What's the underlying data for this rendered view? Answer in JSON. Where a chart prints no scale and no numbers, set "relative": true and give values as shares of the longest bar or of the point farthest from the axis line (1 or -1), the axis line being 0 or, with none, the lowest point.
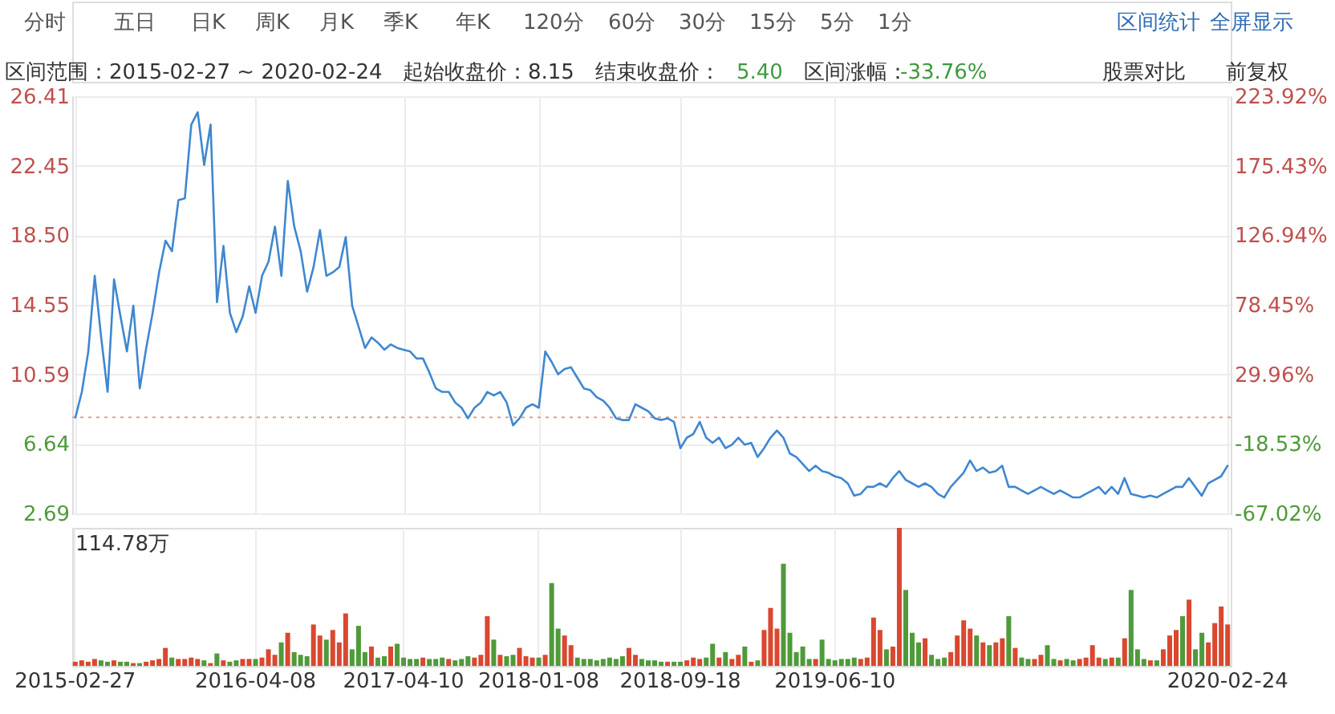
{
  "chart_data": [
    {
      "type": "line",
      "annotations": [
        "分时",
        "五日",
        "日K",
        "周K",
        "月K",
        "季K",
        "年K",
        "120分",
        "60分",
        "30分",
        "15分",
        "5分",
        "1分",
        "区间统计",
        "全屏显示",
        "区间范围：2015-02-27 ~ 2020-02-24",
        "起始收盘价：8.15",
        "结束收盘价：",
        "5.40",
        "区间涨幅：",
        "-33.76%",
        "股票对比",
        "前复权"
      ],
      "categories": [
        "2015-02-27",
        null,
        null,
        null,
        null,
        null,
        null,
        null,
        null,
        null,
        null,
        null,
        null,
        null,
        null,
        null,
        null,
        null,
        null,
        null,
        null,
        null,
        null,
        null,
        null,
        null,
        null,
        null,
        "2016-04-08",
        null,
        null,
        null,
        null,
        null,
        null,
        null,
        null,
        null,
        null,
        null,
        null,
        null,
        null,
        null,
        null,
        null,
        null,
        null,
        null,
        null,
        null,
        "2017-04-10",
        null,
        null,
        null,
        null,
        null,
        null,
        null,
        null,
        null,
        null,
        null,
        null,
        null,
        null,
        null,
        null,
        null,
        null,
        null,
        null,
        "2018-01-08",
        null,
        null,
        null,
        null,
        null,
        null,
        null,
        null,
        null,
        null,
        null,
        null,
        null,
        null,
        null,
        null,
        null,
        null,
        null,
        null,
        null,
        "2018-09-18",
        null,
        null,
        null,
        null,
        null,
        null,
        null,
        null,
        null,
        null,
        null,
        null,
        null,
        null,
        null,
        null,
        null,
        null,
        null,
        null,
        null,
        null,
        null,
        "2019-06-10",
        null,
        null,
        null,
        null,
        null,
        null,
        null,
        null,
        null,
        null,
        null,
        null,
        null,
        null,
        null,
        null,
        null,
        null,
        null,
        null,
        null,
        null,
        null,
        null,
        null,
        null,
        null,
        null,
        null,
        null,
        null,
        null,
        null,
        null,
        null,
        null,
        null,
        null,
        null,
        null,
        null,
        null,
        null,
        null,
        null,
        null,
        null,
        null,
        null,
        null,
        null,
        null,
        null,
        null,
        null,
        null,
        null,
        null,
        null,
        null,
        "2020-02-24"
      ],
      "series": [
        {
          "color": "#3f87d0",
          "values": [
            8.15,
            9.6,
            11.9,
            16.2,
            12.7,
            9.6,
            16.0,
            13.9,
            11.9,
            14.5,
            9.8,
            12.1,
            14.1,
            16.4,
            18.2,
            17.6,
            20.5,
            20.6,
            24.8,
            25.5,
            22.5,
            24.8,
            14.7,
            17.9,
            14.1,
            13.0,
            13.9,
            15.6,
            14.1,
            16.2,
            17.0,
            19.0,
            16.2,
            21.6,
            19.0,
            17.6,
            15.3,
            16.7,
            18.8,
            16.2,
            16.4,
            16.7,
            18.4,
            14.5,
            13.3,
            12.1,
            12.7,
            12.4,
            12.0,
            12.3,
            12.1,
            12.0,
            11.9,
            11.5,
            11.5,
            10.7,
            9.8,
            9.6,
            9.6,
            9.0,
            8.7,
            8.1,
            8.7,
            9.0,
            9.6,
            9.4,
            9.6,
            9.0,
            7.7,
            8.1,
            8.7,
            8.9,
            8.7,
            11.9,
            11.3,
            10.6,
            10.9,
            11.0,
            10.4,
            9.8,
            9.7,
            9.3,
            9.1,
            8.7,
            8.1,
            8.0,
            8.0,
            8.9,
            8.7,
            8.5,
            8.1,
            8.0,
            8.1,
            7.9,
            6.4,
            7.0,
            7.2,
            7.9,
            7.0,
            6.7,
            7.0,
            6.4,
            6.6,
            7.0,
            6.6,
            6.7,
            5.9,
            6.4,
            7.0,
            7.4,
            7.0,
            6.1,
            5.9,
            5.5,
            5.1,
            5.4,
            5.1,
            5.0,
            4.8,
            4.7,
            4.4,
            3.7,
            3.8,
            4.2,
            4.2,
            4.4,
            4.2,
            4.7,
            5.1,
            4.6,
            4.4,
            4.2,
            4.4,
            4.2,
            3.8,
            3.6,
            4.2,
            4.6,
            5.0,
            5.7,
            5.1,
            5.3,
            5.0,
            5.1,
            5.4,
            4.2,
            4.2,
            4.0,
            3.8,
            4.0,
            4.2,
            4.0,
            3.8,
            4.0,
            3.8,
            3.6,
            3.6,
            3.8,
            4.0,
            4.2,
            3.8,
            4.2,
            3.8,
            4.7,
            3.8,
            3.7,
            3.6,
            3.7,
            3.6,
            3.8,
            4.0,
            4.2,
            4.2,
            4.7,
            4.2,
            3.7,
            4.4,
            4.6,
            4.8,
            5.4
          ]
        }
      ],
      "ylim": [
        2.69,
        26.41
      ],
      "yticks": [
        2.69,
        6.64,
        10.59,
        14.55,
        {
          "value": 18.5,
          "label": "18.50"
        },
        22.45,
        26.41
      ],
      "y2lim": [
        -67.02,
        223.92
      ],
      "y2ticks": [
        {
          "value": -67.02,
          "label": "-67.02%"
        },
        {
          "value": -18.53,
          "label": "-18.53%"
        },
        {
          "value": 29.96,
          "label": "29.96%"
        },
        {
          "value": 78.45,
          "label": "78.45%"
        },
        {
          "value": 126.94,
          "label": "126.94%"
        },
        {
          "value": 175.43,
          "label": "175.43%"
        },
        {
          "value": 223.92,
          "label": "223.92%"
        }
      ],
      "ref_lines": [
        {
          "axis": "y",
          "value": 8.15,
          "color": "#d9a48a",
          "line_style": "dotted"
        }
      ],
      "grid": true,
      "tick_labels": "y",
      "marker": "none",
      "line_style": "solid"
    },
    {
      "type": "bar",
      "annotations": [
        "114.78万"
      ],
      "categories": [
        "2015-02-27",
        null,
        null,
        null,
        null,
        null,
        null,
        null,
        null,
        null,
        null,
        null,
        null,
        null,
        null,
        null,
        null,
        null,
        null,
        null,
        null,
        null,
        null,
        null,
        null,
        null,
        null,
        null,
        "2016-04-08",
        null,
        null,
        null,
        null,
        null,
        null,
        null,
        null,
        null,
        null,
        null,
        null,
        null,
        null,
        null,
        null,
        null,
        null,
        null,
        null,
        null,
        null,
        "2017-04-10",
        null,
        null,
        null,
        null,
        null,
        null,
        null,
        null,
        null,
        null,
        null,
        null,
        null,
        null,
        null,
        null,
        null,
        null,
        null,
        null,
        "2018-01-08",
        null,
        null,
        null,
        null,
        null,
        null,
        null,
        null,
        null,
        null,
        null,
        null,
        null,
        null,
        null,
        null,
        null,
        null,
        null,
        null,
        null,
        "2018-09-18",
        null,
        null,
        null,
        null,
        null,
        null,
        null,
        null,
        null,
        null,
        null,
        null,
        null,
        null,
        null,
        null,
        null,
        null,
        null,
        null,
        null,
        null,
        null,
        "2019-06-10",
        null,
        null,
        null,
        null,
        null,
        null,
        null,
        null,
        null,
        null,
        null,
        null,
        null,
        null,
        null,
        null,
        null,
        null,
        null,
        null,
        null,
        null,
        null,
        null,
        null,
        null,
        null,
        null,
        null,
        null,
        null,
        null,
        null,
        null,
        null,
        null,
        null,
        null,
        null,
        null,
        null,
        null,
        null,
        null,
        null,
        null,
        null,
        null,
        null,
        null,
        null,
        null,
        null,
        null,
        null,
        null,
        null,
        null,
        null,
        null,
        "2020-02-24"
      ],
      "values": [
        0.03,
        0.04,
        0.03,
        0.05,
        0.04,
        0.03,
        0.04,
        0.03,
        0.03,
        0.02,
        0.02,
        0.03,
        0.04,
        0.05,
        0.13,
        0.06,
        0.05,
        0.05,
        0.06,
        0.05,
        0.04,
        0.02,
        0.09,
        0.04,
        0.03,
        0.04,
        0.05,
        0.05,
        0.05,
        0.06,
        0.12,
        0.08,
        0.17,
        0.24,
        0.1,
        0.08,
        0.07,
        0.3,
        0.22,
        0.19,
        0.26,
        0.17,
        0.38,
        0.12,
        0.29,
        0.1,
        0.14,
        0.06,
        0.07,
        0.14,
        0.16,
        0.06,
        0.05,
        0.05,
        0.06,
        0.05,
        0.05,
        0.06,
        0.05,
        0.04,
        0.05,
        0.07,
        0.06,
        0.08,
        0.36,
        0.19,
        0.08,
        0.07,
        0.08,
        0.13,
        0.07,
        0.06,
        0.06,
        0.08,
        0.6,
        0.27,
        0.22,
        0.15,
        0.06,
        0.05,
        0.05,
        0.04,
        0.05,
        0.06,
        0.05,
        0.07,
        0.13,
        0.08,
        0.05,
        0.04,
        0.04,
        0.03,
        0.03,
        0.03,
        0.03,
        0.04,
        0.06,
        0.05,
        0.06,
        0.16,
        0.06,
        0.1,
        0.05,
        0.08,
        0.14,
        0.03,
        0.04,
        0.26,
        0.42,
        0.27,
        0.74,
        0.24,
        0.1,
        0.14,
        0.05,
        0.05,
        0.19,
        0.05,
        0.04,
        0.05,
        0.05,
        0.06,
        0.05,
        0.06,
        0.35,
        0.26,
        0.12,
        0.14,
        1.0,
        0.55,
        0.24,
        0.17,
        0.2,
        0.08,
        0.05,
        0.06,
        0.1,
        0.22,
        0.33,
        0.27,
        0.22,
        0.17,
        0.15,
        0.17,
        0.2,
        0.36,
        0.13,
        0.06,
        0.05,
        0.05,
        0.08,
        0.15,
        0.05,
        0.04,
        0.05,
        0.04,
        0.05,
        0.06,
        0.15,
        0.06,
        0.05,
        0.06,
        0.06,
        0.2,
        0.55,
        0.12,
        0.05,
        0.04,
        0.04,
        0.12,
        0.22,
        0.26,
        0.36,
        0.48,
        0.12,
        0.24,
        0.17,
        0.31,
        0.43,
        0.3
      ],
      "colors": [
        "#d9482f",
        "#d9482f",
        "#d9482f",
        "#d9482f",
        "#4f9a3a",
        "#4f9a3a",
        "#d9482f",
        "#4f9a3a",
        "#4f9a3a",
        "#d9482f",
        "#4f9a3a",
        "#d9482f",
        "#d9482f",
        "#d9482f",
        "#d9482f",
        "#4f9a3a",
        "#d9482f",
        "#d9482f",
        "#d9482f",
        "#d9482f",
        "#4f9a3a",
        "#d9482f",
        "#4f9a3a",
        "#d9482f",
        "#4f9a3a",
        "#4f9a3a",
        "#d9482f",
        "#d9482f",
        "#4f9a3a",
        "#d9482f",
        "#d9482f",
        "#d9482f",
        "#4f9a3a",
        "#d9482f",
        "#4f9a3a",
        "#4f9a3a",
        "#4f9a3a",
        "#d9482f",
        "#d9482f",
        "#4f9a3a",
        "#d9482f",
        "#d9482f",
        "#d9482f",
        "#4f9a3a",
        "#4f9a3a",
        "#4f9a3a",
        "#d9482f",
        "#4f9a3a",
        "#4f9a3a",
        "#d9482f",
        "#4f9a3a",
        "#4f9a3a",
        "#4f9a3a",
        "#4f9a3a",
        "#d9482f",
        "#4f9a3a",
        "#4f9a3a",
        "#4f9a3a",
        "#d9482f",
        "#4f9a3a",
        "#4f9a3a",
        "#4f9a3a",
        "#d9482f",
        "#d9482f",
        "#d9482f",
        "#4f9a3a",
        "#d9482f",
        "#4f9a3a",
        "#4f9a3a",
        "#d9482f",
        "#d9482f",
        "#d9482f",
        "#4f9a3a",
        "#d9482f",
        "#4f9a3a",
        "#4f9a3a",
        "#d9482f",
        "#d9482f",
        "#4f9a3a",
        "#4f9a3a",
        "#4f9a3a",
        "#4f9a3a",
        "#4f9a3a",
        "#4f9a3a",
        "#4f9a3a",
        "#4f9a3a",
        "#d9482f",
        "#d9482f",
        "#4f9a3a",
        "#4f9a3a",
        "#4f9a3a",
        "#4f9a3a",
        "#d9482f",
        "#4f9a3a",
        "#4f9a3a",
        "#d9482f",
        "#d9482f",
        "#d9482f",
        "#4f9a3a",
        "#4f9a3a",
        "#d9482f",
        "#4f9a3a",
        "#d9482f",
        "#d9482f",
        "#4f9a3a",
        "#d9482f",
        "#4f9a3a",
        "#d9482f",
        "#d9482f",
        "#d9482f",
        "#4f9a3a",
        "#4f9a3a",
        "#4f9a3a",
        "#4f9a3a",
        "#4f9a3a",
        "#d9482f",
        "#4f9a3a",
        "#4f9a3a",
        "#4f9a3a",
        "#4f9a3a",
        "#4f9a3a",
        "#4f9a3a",
        "#d9482f",
        "#d9482f",
        "#d9482f",
        "#d9482f",
        "#4f9a3a",
        "#d9482f",
        "#d9482f",
        "#4f9a3a",
        "#4f9a3a",
        "#4f9a3a",
        "#d9482f",
        "#4f9a3a",
        "#4f9a3a",
        "#4f9a3a",
        "#d9482f",
        "#d9482f",
        "#d9482f",
        "#d9482f",
        "#4f9a3a",
        "#d9482f",
        "#4f9a3a",
        "#d9482f",
        "#d9482f",
        "#4f9a3a",
        "#d9482f",
        "#4f9a3a",
        "#4f9a3a",
        "#d9482f",
        "#d9482f",
        "#4f9a3a",
        "#4f9a3a",
        "#d9482f",
        "#4f9a3a",
        "#4f9a3a",
        "#d9482f",
        "#d9482f",
        "#d9482f",
        "#d9482f",
        "#4f9a3a",
        "#d9482f",
        "#4f9a3a",
        "#d9482f",
        "#4f9a3a",
        "#4f9a3a",
        "#4f9a3a",
        "#d9482f",
        "#4f9a3a",
        "#d9482f",
        "#d9482f",
        "#d9482f",
        "#4f9a3a",
        "#d9482f",
        "#4f9a3a",
        "#4f9a3a",
        "#d9482f",
        "#d9482f",
        "#d9482f",
        "#d9482f"
      ],
      "relative": true,
      "grid": "x",
      "tick_labels": "x"
    }
  ]
}
